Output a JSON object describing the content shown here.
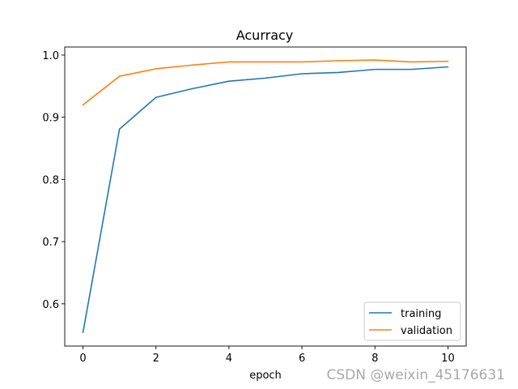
{
  "chart_data": {
    "type": "line",
    "title": "Acurracy",
    "xlabel": "epoch",
    "ylabel": "",
    "x": [
      0,
      1,
      2,
      3,
      4,
      5,
      6,
      7,
      8,
      9,
      10
    ],
    "series": [
      {
        "name": "training",
        "color": "#1f77b4",
        "values": [
          0.554,
          0.881,
          0.932,
          0.946,
          0.958,
          0.963,
          0.97,
          0.972,
          0.977,
          0.977,
          0.981
        ]
      },
      {
        "name": "validation",
        "color": "#ff7f0e",
        "values": [
          0.92,
          0.966,
          0.978,
          0.984,
          0.989,
          0.989,
          0.989,
          0.991,
          0.992,
          0.989,
          0.99
        ]
      }
    ],
    "xlim": [
      -0.5,
      10.5
    ],
    "ylim": [
      0.532,
      1.013
    ],
    "xticks": [
      0,
      2,
      4,
      6,
      8,
      10
    ],
    "yticks": [
      0.6,
      0.7,
      0.8,
      0.9,
      1.0
    ],
    "ytick_labels": [
      "0.6",
      "0.7",
      "0.8",
      "0.9",
      "1.0"
    ],
    "grid": false,
    "legend_position": "bottom-right"
  },
  "watermark": "CSDN @weixin_45176631"
}
